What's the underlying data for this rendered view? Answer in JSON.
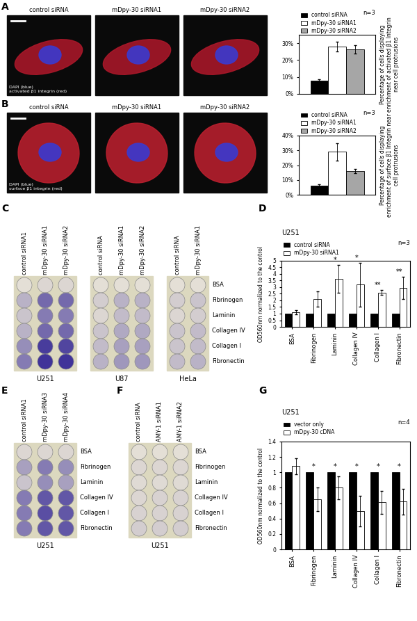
{
  "chart_data": [
    {
      "type": "bar",
      "categories": [
        null
      ],
      "tick_labels": "y",
      "grid": false,
      "legend": "upper left",
      "subtitle": "n=3",
      "ylabel": "Percentage of cells displaying enrichment of activated β1 Integrin near cell protrusions",
      "ylim": [
        0,
        35
      ],
      "yticks": [
        {
          "value": 0,
          "label": "0%"
        },
        {
          "value": 10,
          "label": "10%"
        },
        {
          "value": 20,
          "label": "20%"
        },
        {
          "value": 30,
          "label": "30%"
        }
      ],
      "series": [
        {
          "name": "control siRNA",
          "color": "#000000",
          "values": [
            8
          ],
          "errors": [
            0.5
          ]
        },
        {
          "name": "mDpy-30 siRNA1",
          "color": "#ffffff",
          "values": [
            28
          ],
          "errors": [
            3
          ]
        },
        {
          "name": "mDpy-30 siRNA2",
          "color": "#a6a6a6",
          "values": [
            26.5
          ],
          "errors": [
            2.5
          ]
        }
      ]
    },
    {
      "type": "bar",
      "categories": [
        null
      ],
      "tick_labels": "y",
      "grid": false,
      "legend": "upper left",
      "subtitle": "n=3",
      "ylabel": "Percentage of cells displaying enrichment of surface β1 Integrin near cell protrusions",
      "ylim": [
        0,
        40
      ],
      "yticks": [
        {
          "value": 0,
          "label": "0%"
        },
        {
          "value": 10,
          "label": "10%"
        },
        {
          "value": 20,
          "label": "20%"
        },
        {
          "value": 30,
          "label": "30%"
        },
        {
          "value": 40,
          "label": "40%"
        }
      ],
      "series": [
        {
          "name": "control siRNA",
          "color": "#000000",
          "values": [
            6
          ],
          "errors": [
            1
          ]
        },
        {
          "name": "mDpy-30 siRNA1",
          "color": "#ffffff",
          "values": [
            29
          ],
          "errors": [
            6
          ]
        },
        {
          "name": "mDpy-30 siRNA2",
          "color": "#a6a6a6",
          "values": [
            16
          ],
          "errors": [
            1.5
          ]
        }
      ]
    },
    {
      "type": "bar",
      "title": "U251",
      "subtitle": "n=3",
      "grid": false,
      "legend": "upper left",
      "ylabel": "OD560nm normalized to the control",
      "categories": [
        "BSA",
        "Fibrinogen",
        "Laminin",
        "Collagen IV",
        "Collagen I",
        "Fibronectin"
      ],
      "ylim": [
        0,
        5
      ],
      "yticks": [
        0,
        0.5,
        1,
        1.5,
        2,
        2.5,
        3,
        3.5,
        4,
        4.5,
        5
      ],
      "series": [
        {
          "name": "control siRNA",
          "color": "#000000",
          "values": [
            1,
            1,
            1,
            1,
            1,
            1
          ]
        },
        {
          "name": "mDpy-30 siRNA1",
          "color": "#ffffff",
          "values": [
            1.1,
            2.1,
            3.65,
            3.2,
            2.6,
            2.95
          ],
          "errors": [
            0.15,
            0.6,
            1.05,
            1.65,
            0.2,
            0.85
          ]
        }
      ],
      "annotations": [
        {
          "category": "Laminin",
          "text": "*"
        },
        {
          "category": "Collagen IV",
          "text": "*"
        },
        {
          "category": "Collagen I",
          "text": "**"
        },
        {
          "category": "Fibronectin",
          "text": "**"
        }
      ]
    },
    {
      "type": "bar",
      "title": "U251",
      "subtitle": "n=4",
      "grid": false,
      "legend": "upper left",
      "ylabel": "OD560nm normalized to the control",
      "categories": [
        "BSA",
        "Fibrinogen",
        "Laminin",
        "Collagen IV",
        "Collagen I",
        "Fibronectin"
      ],
      "ylim": [
        0,
        1.4
      ],
      "yticks": [
        0,
        0.2,
        0.4,
        0.6,
        0.8,
        1,
        1.2,
        1.4
      ],
      "series": [
        {
          "name": "vector only",
          "color": "#000000",
          "values": [
            1,
            1,
            1,
            1,
            1,
            1
          ]
        },
        {
          "name": "mDpy-30 cDNA",
          "color": "#ffffff",
          "values": [
            1.08,
            0.65,
            0.8,
            0.5,
            0.61,
            0.62
          ],
          "errors": [
            0.1,
            0.15,
            0.15,
            0.2,
            0.15,
            0.17
          ]
        }
      ],
      "annotations": [
        {
          "category": "Fibrinogen",
          "text": "*"
        },
        {
          "category": "Laminin",
          "text": "*"
        },
        {
          "category": "Collagen IV",
          "text": "*"
        },
        {
          "category": "Collagen I",
          "text": "*"
        },
        {
          "category": "Fibronectin",
          "text": "*"
        }
      ]
    }
  ],
  "figure": {
    "panel_labels": [
      "A",
      "B",
      "C",
      "D",
      "E",
      "F",
      "G"
    ],
    "micrographs": [
      {
        "columns": [
          "control siRNA",
          "mDpy-30 siRNA1",
          "mDpy-30 siRNA2"
        ],
        "caption": "DAPI (blue)\nactivated β1 integrin (red)"
      },
      {
        "columns": [
          "control siRNA",
          "mDpy-30 siRNA1",
          "mDpy-30 siRNA2"
        ],
        "caption": "DAPI (blue)\nsurface β1 integrin (red)"
      }
    ],
    "plate_rows": [
      "BSA",
      "Fibrinogen",
      "Laminin",
      "Collagen IV",
      "Collagen I",
      "Fibronectin"
    ],
    "plates": [
      {
        "columns": [
          "control siRNA1",
          "mDpy-30 siRNA1",
          "mDpy-30 siRNA2"
        ],
        "cell_line": "U251"
      },
      {
        "columns": [
          "control siRNA",
          "mDpy-30 siRNA1",
          "mDpy-30 siRNA2"
        ],
        "cell_line": "U87"
      },
      {
        "columns": [
          "control siRNA",
          "mDpy-30 siRNA1"
        ],
        "cell_line": "HeLa"
      },
      {
        "columns": [
          "control siRNA1",
          "mDpy-30 siRNA3",
          "mDpy-30 siRNA4"
        ],
        "cell_line": "U251"
      },
      {
        "columns": [
          "control siRNA",
          "AMY-1 siRNA1",
          "AMY-1 siRNA2"
        ],
        "cell_line": "U251"
      }
    ]
  }
}
